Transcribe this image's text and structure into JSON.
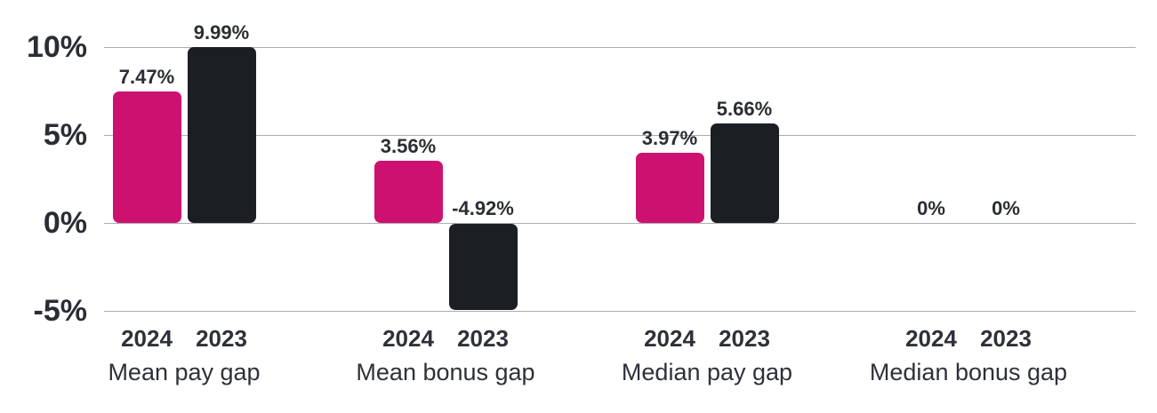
{
  "chart_data": {
    "type": "bar",
    "title": "",
    "categories": [
      "Mean pay gap",
      "Mean bonus gap",
      "Median pay gap",
      "Median bonus gap"
    ],
    "series": [
      {
        "name": "2024",
        "color": "#cd1171",
        "values": [
          7.47,
          3.56,
          3.97,
          0
        ]
      },
      {
        "name": "2023",
        "color": "#1b1f24",
        "values": [
          9.99,
          -4.92,
          5.66,
          0
        ]
      }
    ],
    "value_labels": [
      [
        "7.47%",
        "9.99%"
      ],
      [
        "3.56%",
        "-4.92%"
      ],
      [
        "3.97%",
        "5.66%"
      ],
      [
        "0%",
        "0%"
      ]
    ],
    "yticks": [
      {
        "label": "10%",
        "value": 10
      },
      {
        "label": "5%",
        "value": 5
      },
      {
        "label": "0%",
        "value": 0
      },
      {
        "label": "-5%",
        "value": -5
      }
    ],
    "ylim": [
      -5,
      10
    ],
    "grid": true,
    "legend_position": "none",
    "xlabel": "",
    "ylabel": ""
  },
  "colors": {
    "background": "#ffffff",
    "gridline": "#adadad",
    "text": "#2a2d33",
    "bar_2024": "#cd1171",
    "bar_2023": "#1b1f24"
  }
}
